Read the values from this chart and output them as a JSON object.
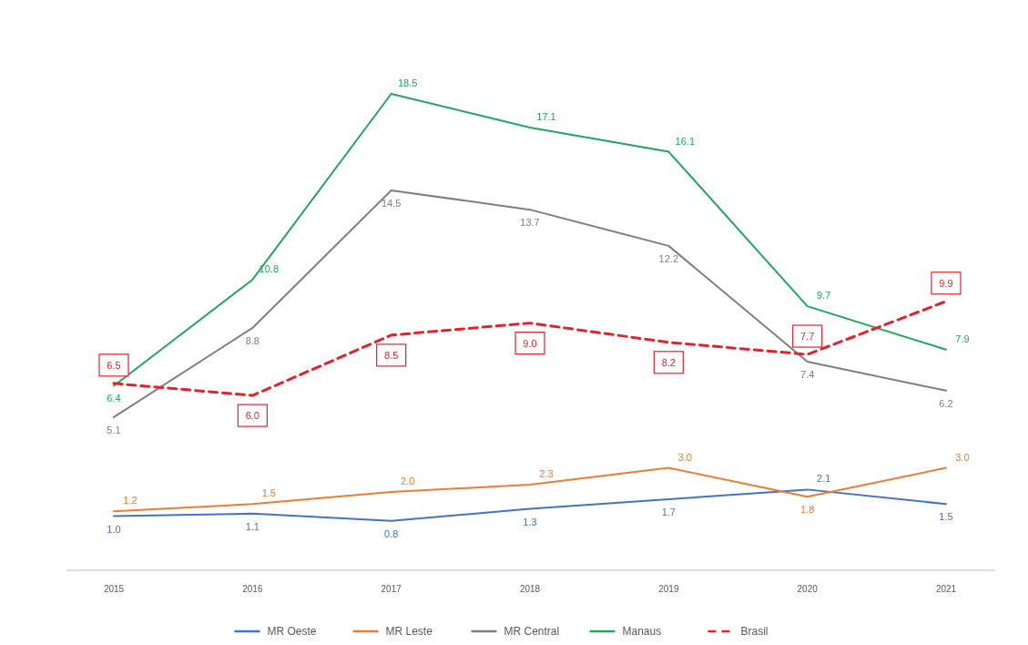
{
  "chart_data": {
    "type": "line",
    "categories": [
      "2015",
      "2016",
      "2017",
      "2018",
      "2019",
      "2020",
      "2021"
    ],
    "tick_labels": "x",
    "legend": "bottom",
    "grid": false,
    "series": [
      {
        "name": "MR Oeste",
        "color": "#4472c4",
        "values": [
          1.0,
          1.1,
          0.8,
          1.3,
          1.7,
          2.1,
          1.5
        ],
        "value_labels": [
          "1.0",
          "1.1",
          "0.8",
          "1.3",
          "1.7",
          "2.1",
          "1.5"
        ]
      },
      {
        "name": "MR Leste",
        "color": "#ed7d31",
        "values": [
          1.2,
          1.5,
          2.0,
          2.3,
          3.0,
          1.8,
          3.0
        ],
        "value_labels": [
          "1.2",
          "1.5",
          "2.0",
          "2.3",
          "3.0",
          "1.8",
          "3.0"
        ]
      },
      {
        "name": "MR Central",
        "color": "#7f7f7f",
        "values": [
          5.1,
          8.8,
          14.5,
          13.7,
          12.2,
          7.4,
          6.2
        ],
        "value_labels": [
          "5.1",
          "8.8",
          "14.5",
          "13.7",
          "12.2",
          "7.4",
          "6.2"
        ]
      },
      {
        "name": "Manaus",
        "color": "#1fa85a",
        "values": [
          6.4,
          10.8,
          18.5,
          17.1,
          16.1,
          9.7,
          7.9
        ],
        "value_labels": [
          "6.4",
          "10.8",
          "18.5",
          "17.1",
          "16.1",
          "9.7",
          "7.9"
        ]
      },
      {
        "name": "Brasil",
        "color": "#e8202a",
        "line_style": "dashed",
        "values": [
          6.5,
          6.0,
          8.5,
          9.0,
          8.2,
          7.7,
          9.9
        ],
        "value_labels": [
          "6.5",
          "6.0",
          "8.5",
          "9.0",
          "8.2",
          "7.7",
          "9.9"
        ]
      }
    ]
  }
}
